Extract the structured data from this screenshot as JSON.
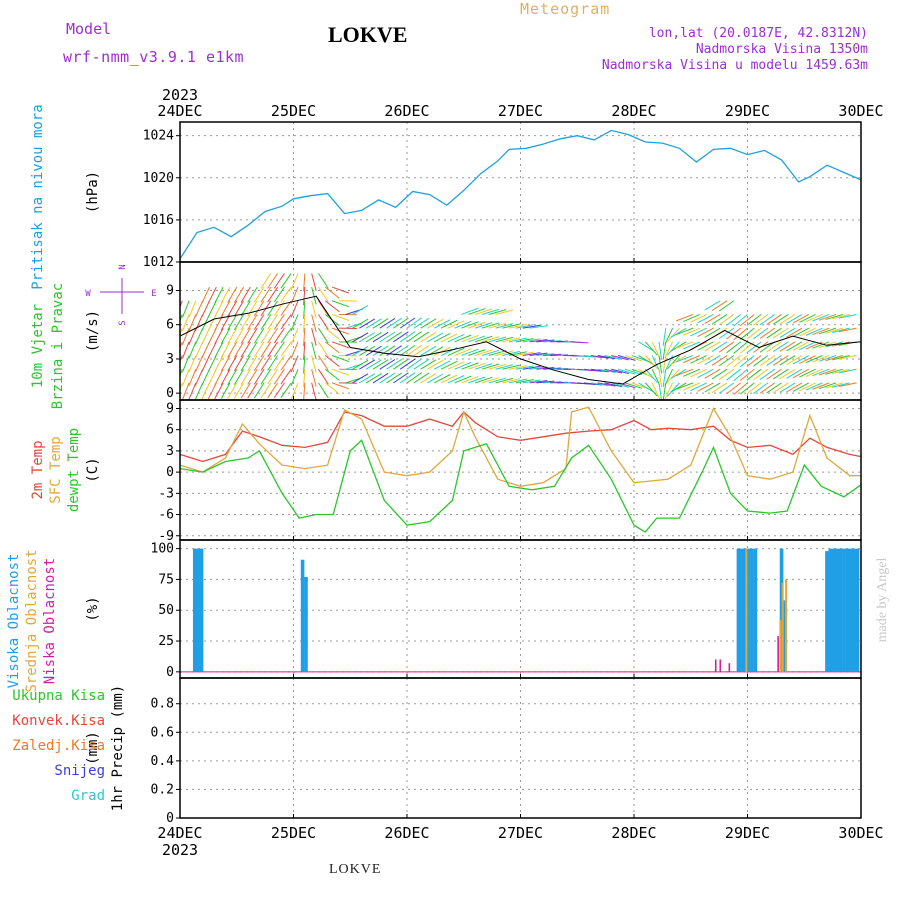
{
  "header": {
    "model_label": "Model",
    "model_name": "wrf-nmm_v3.9.1  e1km",
    "station": "LOKVE",
    "meteogram": "Meteogram",
    "lonlat": "lon,lat (20.0187E, 42.8312N)",
    "elevation": "Nadmorska Visina 1350m",
    "model_elevation": "Nadmorska Visina u modelu 1459.63m",
    "footer_station": "LOKVE",
    "credit": "made by Angel"
  },
  "colors": {
    "pressure": "#1fa0e0",
    "temp2m": "#e8463c",
    "sfc": "#e0a83c",
    "dewpt": "#28c828",
    "high_cloud": "#1f9fe6",
    "mid_cloud": "#e0a83c",
    "low_cloud": "#d21fa0",
    "precip_total": "#28c828",
    "precip_conv": "#e8463c",
    "precip_frozen": "#f07828",
    "snow": "#3c3ce0",
    "hail": "#2ec8c8",
    "wind_rose": "#9b2fd0",
    "grid": "#9a9a9a"
  },
  "chart_data": {
    "x_axis": {
      "year": "2023",
      "ticks": [
        "24DEC",
        "25DEC",
        "26DEC",
        "27DEC",
        "28DEC",
        "29DEC",
        "30DEC"
      ],
      "range_days": [
        0,
        6
      ]
    },
    "panels": [
      {
        "id": "pressure",
        "type": "line",
        "ylabel_lines": [
          "Pritisak na nivou mora"
        ],
        "unit": "(hPa)",
        "ylim": [
          1012,
          1025.3
        ],
        "yticks": [
          1012,
          1016,
          1020,
          1024
        ],
        "series": [
          {
            "x": [
              0,
              0.15,
              0.3,
              0.45,
              0.6,
              0.75,
              0.9,
              1.0,
              1.15,
              1.3,
              1.45,
              1.6,
              1.75,
              1.9,
              2.05,
              2.2,
              2.35,
              2.5,
              2.65,
              2.8,
              2.9,
              3.05,
              3.2,
              3.35,
              3.5,
              3.65,
              3.8,
              3.95,
              4.1,
              4.25,
              4.4,
              4.55,
              4.7,
              4.85,
              5.0,
              5.15,
              5.3,
              5.45,
              5.55,
              5.7,
              5.85,
              6.0
            ],
            "values": [
              1012.3,
              1014.8,
              1015.3,
              1014.4,
              1015.5,
              1016.8,
              1017.3,
              1018.0,
              1018.3,
              1018.5,
              1016.6,
              1016.9,
              1017.9,
              1017.2,
              1018.7,
              1018.4,
              1017.4,
              1018.8,
              1020.4,
              1021.6,
              1022.7,
              1022.8,
              1023.2,
              1023.7,
              1024.0,
              1023.6,
              1024.5,
              1024.1,
              1023.4,
              1023.3,
              1022.8,
              1021.5,
              1022.7,
              1022.8,
              1022.2,
              1022.6,
              1021.7,
              1019.6,
              1020.1,
              1021.2,
              1020.5,
              1019.8
            ]
          }
        ]
      },
      {
        "id": "wind",
        "type": "barbs",
        "ylabel_lines": [
          "10m Vjetar",
          "Brzina i Pravac"
        ],
        "unit": "(m/s)",
        "ylim": [
          -0.6,
          11.5
        ],
        "yticks": [
          0,
          3,
          6,
          9
        ],
        "rose": {
          "n": "N",
          "s": "S",
          "e": "E",
          "w": "W"
        },
        "speed": {
          "x": [
            0,
            0.3,
            0.6,
            0.9,
            1.2,
            1.5,
            1.8,
            2.1,
            2.4,
            2.7,
            3.0,
            3.3,
            3.6,
            3.9,
            4.2,
            4.5,
            4.8,
            5.1,
            5.4,
            5.7,
            6.0
          ],
          "values": [
            5.0,
            6.5,
            7.0,
            7.8,
            8.5,
            4.0,
            3.5,
            3.2,
            3.8,
            4.5,
            3.0,
            2.0,
            1.2,
            0.8,
            2.5,
            3.8,
            5.5,
            4.0,
            5.0,
            4.2,
            4.5
          ]
        },
        "direction": {
          "x": [
            0,
            0.5,
            1.0,
            1.5,
            2.0,
            2.5,
            3.0,
            3.5,
            4.0,
            4.5,
            5.0,
            5.5,
            6.0
          ],
          "values": [
            200,
            210,
            215,
            60,
            55,
            70,
            80,
            95,
            110,
            250,
            230,
            240,
            260
          ]
        }
      },
      {
        "id": "temperature",
        "type": "line",
        "ylabel_lines": [
          "2m Temp",
          "SFC Temp",
          "dewpt Temp"
        ],
        "unit": "(C)",
        "ylim": [
          -9.6,
          10.2
        ],
        "yticks": [
          -9,
          -6,
          -3,
          0,
          3,
          6,
          9
        ],
        "series": [
          {
            "name": "2m Temp",
            "x": [
              0,
              0.2,
              0.4,
              0.55,
              0.7,
              0.9,
              1.1,
              1.3,
              1.45,
              1.6,
              1.8,
              2.0,
              2.2,
              2.4,
              2.5,
              2.6,
              2.8,
              3.0,
              3.2,
              3.4,
              3.6,
              3.8,
              4.0,
              4.15,
              4.3,
              4.5,
              4.7,
              4.85,
              5.0,
              5.2,
              5.4,
              5.55,
              5.7,
              5.9,
              6.0
            ],
            "values": [
              2.5,
              1.5,
              2.5,
              5.8,
              5.0,
              3.8,
              3.5,
              4.2,
              8.5,
              8.0,
              6.5,
              6.5,
              7.5,
              6.5,
              8.5,
              7.0,
              5.0,
              4.5,
              5.0,
              5.5,
              5.8,
              6.0,
              7.3,
              6.0,
              6.2,
              6.0,
              6.5,
              4.5,
              3.5,
              3.8,
              2.5,
              4.8,
              3.5,
              2.5,
              2.2
            ]
          },
          {
            "name": "SFC Temp",
            "x": [
              0,
              0.2,
              0.4,
              0.55,
              0.7,
              0.9,
              1.1,
              1.3,
              1.45,
              1.6,
              1.8,
              2.0,
              2.2,
              2.4,
              2.5,
              2.6,
              2.8,
              3.0,
              3.2,
              3.4,
              3.45,
              3.6,
              3.8,
              4.0,
              4.3,
              4.5,
              4.7,
              4.85,
              5.0,
              5.2,
              5.4,
              5.55,
              5.7,
              5.9,
              6.0
            ],
            "values": [
              1.0,
              0.0,
              2.0,
              6.8,
              4.0,
              1.0,
              0.5,
              1.0,
              8.8,
              7.5,
              0.0,
              -0.5,
              0.0,
              3.0,
              8.5,
              5.0,
              -1.0,
              -2.0,
              -1.5,
              0.5,
              8.5,
              9.2,
              3.0,
              -1.5,
              -1.0,
              1.0,
              9.0,
              5.0,
              -0.5,
              -1.0,
              0.0,
              8.0,
              2.0,
              -0.5,
              -0.5
            ]
          },
          {
            "name": "dewpt Temp",
            "x": [
              0,
              0.2,
              0.4,
              0.6,
              0.7,
              0.9,
              1.05,
              1.2,
              1.35,
              1.5,
              1.6,
              1.8,
              2.0,
              2.2,
              2.4,
              2.5,
              2.7,
              2.9,
              3.1,
              3.3,
              3.45,
              3.6,
              3.8,
              4.0,
              4.1,
              4.2,
              4.4,
              4.6,
              4.7,
              4.85,
              5.0,
              5.2,
              5.35,
              5.5,
              5.65,
              5.85,
              6.0
            ],
            "values": [
              0.5,
              0.0,
              1.5,
              2.0,
              3.0,
              -3.0,
              -6.5,
              -6.0,
              -6.0,
              3.0,
              4.5,
              -4.0,
              -7.5,
              -7.0,
              -4.0,
              3.0,
              4.0,
              -2.0,
              -2.5,
              -2.0,
              2.0,
              3.8,
              -1.0,
              -7.5,
              -8.5,
              -6.5,
              -6.5,
              0.0,
              3.5,
              -3.0,
              -5.5,
              -5.8,
              -5.5,
              1.0,
              -2.0,
              -3.5,
              -1.8
            ]
          }
        ]
      },
      {
        "id": "cloud",
        "type": "bar",
        "ylabel_lines": [
          "Visoka Oblacnost",
          "Srednja Oblacnost",
          "Niska Oblacnost"
        ],
        "unit": "(%)",
        "ylim": [
          -5,
          107
        ],
        "yticks": [
          0,
          25,
          50,
          75,
          100
        ],
        "series": [
          {
            "name": "Visoka Oblacnost",
            "x": [
              0.13,
              0.16,
              0.19,
              1.08,
              1.11,
              4.92,
              4.95,
              4.98,
              5.01,
              5.04,
              5.07,
              5.3,
              5.33,
              5.7,
              5.73,
              5.76,
              5.79,
              5.82,
              5.85,
              5.88,
              5.91,
              5.94,
              5.97
            ],
            "values": [
              100,
              100,
              100,
              91,
              77,
              100,
              100,
              100,
              100,
              100,
              100,
              100,
              58,
              98,
              100,
              100,
              100,
              100,
              100,
              100,
              100,
              100,
              100
            ]
          },
          {
            "name": "Srednja Oblacnost",
            "x": [
              4.99,
              5.29,
              5.31,
              5.34
            ],
            "values": [
              100,
              42,
              72,
              75
            ]
          },
          {
            "name": "Niska Oblacnost",
            "x": [
              4.72,
              4.76,
              4.84,
              5.27
            ],
            "values": [
              10,
              10,
              7,
              29
            ]
          }
        ]
      },
      {
        "id": "precip",
        "type": "bar",
        "ylabel_lines": [
          "1hr Precip"
        ],
        "unit": "(mm)",
        "ylim": [
          0,
          0.98
        ],
        "yticks": [
          0,
          0.2,
          0.4,
          0.6,
          0.8
        ],
        "legend": [
          "Ukupna Kisa",
          "Konvek.Kisa",
          "Zaledj.Kisa",
          "Snijeg",
          "Grad"
        ],
        "series": []
      }
    ]
  }
}
